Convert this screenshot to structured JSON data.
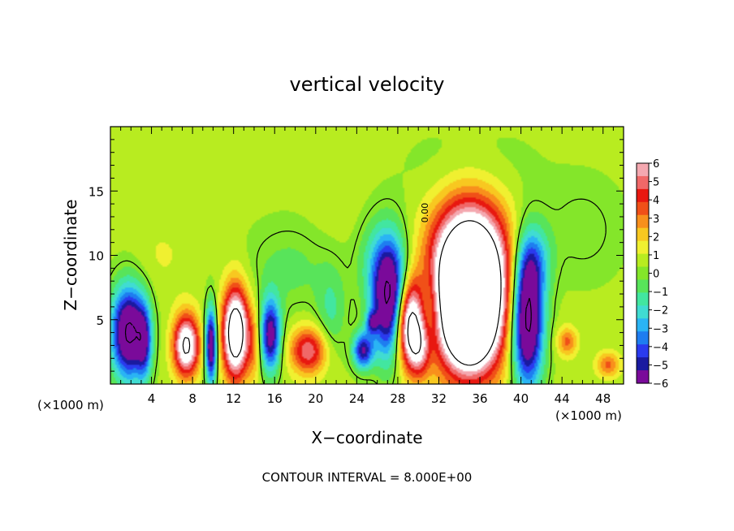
{
  "chart_data": {
    "type": "heatmap",
    "title": "vertical velocity",
    "xlabel": "X−coordinate",
    "ylabel": "Z−coordinate",
    "x_unit_label": "(×1000 m)",
    "z_unit_label": "(×1000 m)",
    "footer": "CONTOUR INTERVAL = 8.000E+00",
    "contour_label": "0.00",
    "xlim": [
      0,
      50
    ],
    "ylim": [
      0,
      20
    ],
    "x_ticks": [
      4,
      8,
      12,
      16,
      20,
      24,
      28,
      32,
      36,
      40,
      44,
      48
    ],
    "y_ticks": [
      5,
      10,
      15
    ],
    "colorbar": {
      "min": -6,
      "max": 6,
      "ticks": [
        "6",
        "5",
        "4",
        "3",
        "2",
        "1",
        "0",
        "−1",
        "−2",
        "−3",
        "−4",
        "−5",
        "−6"
      ],
      "colors": [
        "#7a0a9a",
        "#1a1aa0",
        "#2a3aee",
        "#1e7df0",
        "#2ab4f4",
        "#40dcd2",
        "#42e6a0",
        "#58e45a",
        "#84e62a",
        "#b8ec20",
        "#f0f030",
        "#f8c820",
        "#f8901c",
        "#f05018",
        "#e81810",
        "#f06868",
        "#f4a8b0"
      ],
      "over_color": "#ffffff"
    },
    "background_value": 0.6,
    "features": [
      {
        "x": 35,
        "z": 7.5,
        "sx": 2.6,
        "sz": 4.3,
        "w": 16
      },
      {
        "x": 35,
        "z": 4.0,
        "sx": 1.2,
        "sz": 1.5,
        "w": 6
      },
      {
        "x": 29,
        "z": 4.8,
        "sx": 1.0,
        "sz": 2.4,
        "w": 9
      },
      {
        "x": 30.2,
        "z": 2.8,
        "sx": 0.8,
        "sz": 1.6,
        "w": 4
      },
      {
        "x": 27.3,
        "z": 6.2,
        "sx": 1.2,
        "sz": 3.0,
        "w": -9
      },
      {
        "x": 26.5,
        "z": 9.5,
        "sx": 1.6,
        "sz": 2.5,
        "w": -2.5
      },
      {
        "x": 31.0,
        "z": 5.5,
        "sx": 0.8,
        "sz": 2.5,
        "w": -3
      },
      {
        "x": 40.6,
        "z": 5.0,
        "sx": 1.1,
        "sz": 3.6,
        "w": -10
      },
      {
        "x": 41.2,
        "z": 9.5,
        "sx": 1.2,
        "sz": 2.0,
        "w": -3
      },
      {
        "x": 12.2,
        "z": 4.0,
        "sx": 0.9,
        "sz": 2.5,
        "w": 10
      },
      {
        "x": 7.4,
        "z": 3.0,
        "sx": 0.9,
        "sz": 1.7,
        "w": 8
      },
      {
        "x": 9.8,
        "z": 3.0,
        "sx": 0.4,
        "sz": 2.1,
        "w": -8
      },
      {
        "x": 1.8,
        "z": 4.0,
        "sx": 1.2,
        "sz": 2.5,
        "w": -9
      },
      {
        "x": 3.3,
        "z": 3.2,
        "sx": 0.5,
        "sz": 2.0,
        "w": -4
      },
      {
        "x": 15.6,
        "z": 3.8,
        "sx": 0.7,
        "sz": 2.0,
        "w": -7
      },
      {
        "x": 19.3,
        "z": 2.6,
        "sx": 1.3,
        "sz": 1.3,
        "w": 5
      },
      {
        "x": 24.6,
        "z": 2.6,
        "sx": 0.7,
        "sz": 1.0,
        "w": -6
      },
      {
        "x": 25.5,
        "z": 4.8,
        "sx": 0.4,
        "sz": 0.6,
        "w": -4
      },
      {
        "x": 21.5,
        "z": 5.5,
        "sx": 1.0,
        "sz": 2.5,
        "w": -1.8
      },
      {
        "x": 14.0,
        "z": 3.0,
        "sx": 0.5,
        "sz": 2.0,
        "w": 2
      },
      {
        "x": 44.5,
        "z": 3.3,
        "sx": 0.7,
        "sz": 0.8,
        "w": 3
      },
      {
        "x": 48.5,
        "z": 1.5,
        "sx": 0.8,
        "sz": 0.7,
        "w": 3
      },
      {
        "x": 17.5,
        "z": 9.0,
        "sx": 3.0,
        "sz": 2.5,
        "w": -1.2
      },
      {
        "x": 5.0,
        "z": 10.0,
        "sx": 2.0,
        "sz": 2.0,
        "w": 0.6
      },
      {
        "x": 8.0,
        "z": 17.0,
        "sx": 3.0,
        "sz": 2.0,
        "w": 0.3
      },
      {
        "x": 35.0,
        "z": 16.5,
        "sx": 4.0,
        "sz": 2.5,
        "w": -1.0
      },
      {
        "x": 46.0,
        "z": 12.0,
        "sx": 3.0,
        "sz": 3.0,
        "w": -0.8
      },
      {
        "x": 22.0,
        "z": 14.0,
        "sx": 2.0,
        "sz": 3.0,
        "w": 0.3
      }
    ]
  }
}
